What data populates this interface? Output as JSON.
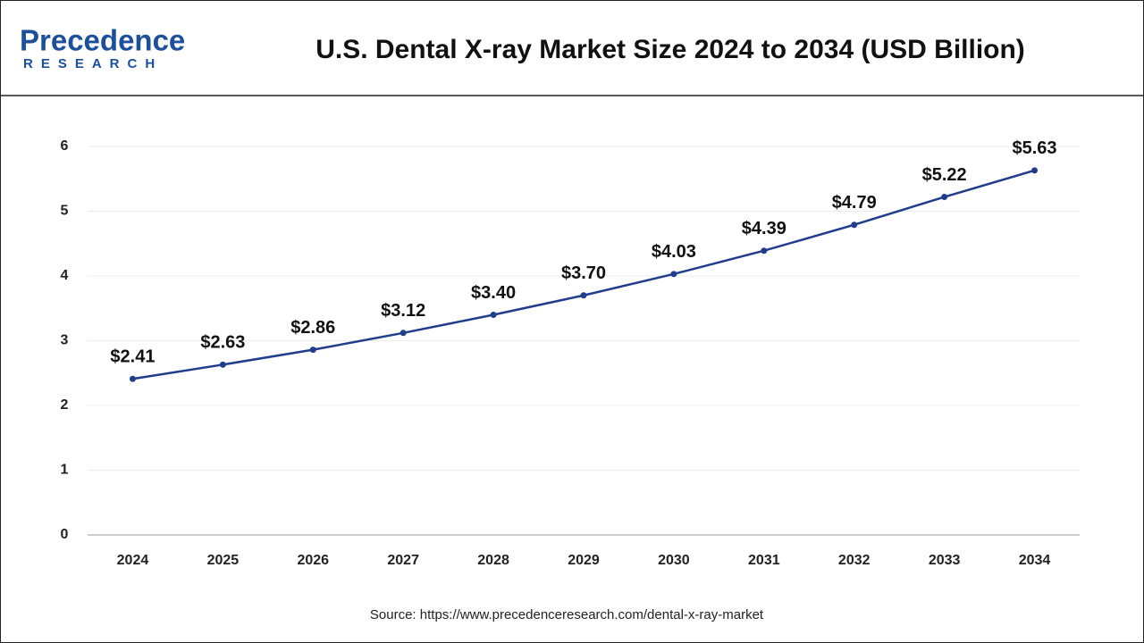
{
  "logo": {
    "name": "Precedence",
    "tagline": "RESEARCH"
  },
  "chart_data": {
    "type": "line",
    "title": "U.S. Dental X-ray Market Size 2024 to 2034 (USD Billion)",
    "categories": [
      "2024",
      "2025",
      "2026",
      "2027",
      "2028",
      "2029",
      "2030",
      "2031",
      "2032",
      "2033",
      "2034"
    ],
    "values": [
      2.41,
      2.63,
      2.86,
      3.12,
      3.4,
      3.7,
      4.03,
      4.39,
      4.79,
      5.22,
      5.63
    ],
    "value_labels": [
      "$2.41",
      "$2.63",
      "$2.86",
      "$3.12",
      "$3.40",
      "$3.70",
      "$4.03",
      "$4.39",
      "$4.79",
      "$5.22",
      "$5.63"
    ],
    "color": "#1f3d8c",
    "ylim": [
      0,
      6
    ],
    "yticks": [
      0,
      1,
      2,
      3,
      4,
      5,
      6
    ],
    "grid": true,
    "source": "Source: https://www.precedenceresearch.com/dental-x-ray-market"
  }
}
